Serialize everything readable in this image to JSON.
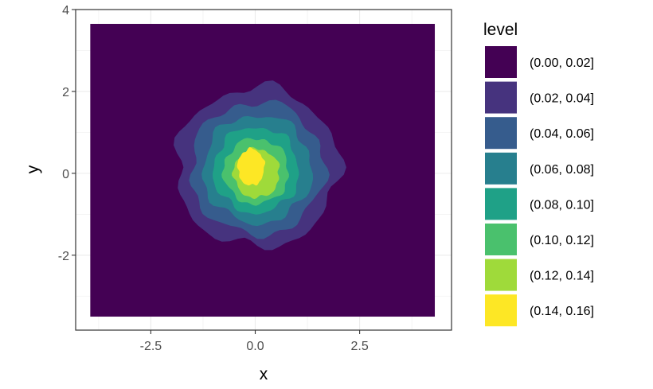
{
  "chart_data": {
    "type": "contour_filled",
    "title": "",
    "xlabel": "x",
    "ylabel": "y",
    "xlim": [
      -4.3,
      4.7
    ],
    "ylim": [
      -3.83,
      4.0
    ],
    "x_ticks": [
      -2.5,
      0.0,
      2.5
    ],
    "x_tick_labels": [
      "-2.5",
      "0.0",
      "2.5"
    ],
    "y_ticks": [
      -2,
      0,
      2,
      4
    ],
    "y_tick_labels": [
      "-2",
      "0",
      "2",
      "4"
    ],
    "grid": true,
    "theme": "bw",
    "data_extent": {
      "x": [
        -3.95,
        4.3
      ],
      "y": [
        -3.5,
        3.65
      ]
    },
    "density_center": [
      0.0,
      0.0
    ],
    "legend": {
      "title": "level",
      "position": "right",
      "entries": [
        {
          "label": "(0.00, 0.02]",
          "color": "#440154"
        },
        {
          "label": "(0.02, 0.04]",
          "color": "#46337E"
        },
        {
          "label": "(0.04, 0.06]",
          "color": "#365C8D"
        },
        {
          "label": "(0.06, 0.08]",
          "color": "#277F8E"
        },
        {
          "label": "(0.08, 0.10]",
          "color": "#1FA187"
        },
        {
          "label": "(0.10, 0.12]",
          "color": "#4AC16D"
        },
        {
          "label": "(0.12, 0.14]",
          "color": "#9FDA3A"
        },
        {
          "label": "(0.14, 0.16]",
          "color": "#FDE725"
        }
      ]
    },
    "levels": [
      {
        "lower": 0.02,
        "rx": 1.95,
        "ry": 1.95,
        "cx": 0.05,
        "cy": 0.15,
        "color": "#46337E"
      },
      {
        "lower": 0.04,
        "rx": 1.6,
        "ry": 1.62,
        "cx": 0.05,
        "cy": 0.12,
        "color": "#365C8D"
      },
      {
        "lower": 0.06,
        "rx": 1.3,
        "ry": 1.32,
        "cx": 0.05,
        "cy": 0.1,
        "color": "#277F8E"
      },
      {
        "lower": 0.08,
        "rx": 1.02,
        "ry": 1.05,
        "cx": 0.02,
        "cy": 0.08,
        "color": "#1FA187"
      },
      {
        "lower": 0.1,
        "rx": 0.78,
        "ry": 0.8,
        "cx": 0.02,
        "cy": 0.05,
        "color": "#4AC16D"
      },
      {
        "lower": 0.12,
        "rx": 0.55,
        "ry": 0.6,
        "cx": 0.03,
        "cy": 0.0,
        "color": "#9FDA3A"
      },
      {
        "lower": 0.14,
        "rx": 0.32,
        "ry": 0.45,
        "cx": -0.1,
        "cy": 0.15,
        "color": "#FDE725"
      }
    ]
  }
}
